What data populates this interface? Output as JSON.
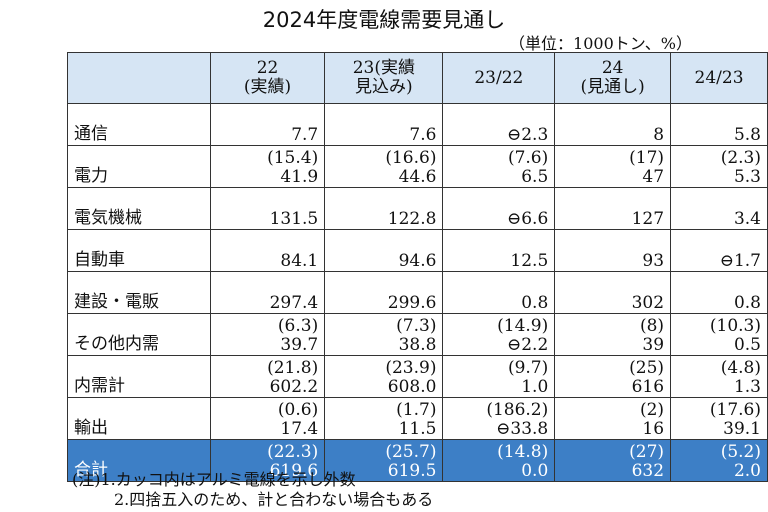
{
  "header": {
    "title": "2024年度電線需要見通し",
    "unit": "（単位：1000トン、%）"
  },
  "table": {
    "columns": [
      "22\n(実績)",
      "23(実績\n見込み)",
      "23/22",
      "24\n(見通し)",
      "24/23"
    ],
    "rows": [
      {
        "label": "通信",
        "values": [
          "7.7",
          "7.6",
          "⊖2.3",
          "8",
          "5.8"
        ]
      },
      {
        "label": "電力",
        "paren": [
          "(15.4)",
          "(16.6)",
          "(7.6)",
          "(17)",
          "(2.3)"
        ],
        "values": [
          "41.9",
          "44.6",
          "6.5",
          "47",
          "5.3"
        ]
      },
      {
        "label": "電気機械",
        "values": [
          "131.5",
          "122.8",
          "⊖6.6",
          "127",
          "3.4"
        ]
      },
      {
        "label": "自動車",
        "values": [
          "84.1",
          "94.6",
          "12.5",
          "93",
          "⊖1.7"
        ]
      },
      {
        "label": "建設・電販",
        "values": [
          "297.4",
          "299.6",
          "0.8",
          "302",
          "0.8"
        ]
      },
      {
        "label": "その他内需",
        "paren": [
          "(6.3)",
          "(7.3)",
          "(14.9)",
          "(8)",
          "(10.3)"
        ],
        "values": [
          "39.7",
          "38.8",
          "⊖2.2",
          "39",
          "0.5"
        ]
      },
      {
        "label": "内需計",
        "paren": [
          "(21.8)",
          "(23.9)",
          "(9.7)",
          "(25)",
          "(4.8)"
        ],
        "values": [
          "602.2",
          "608.0",
          "1.0",
          "616",
          "1.3"
        ]
      },
      {
        "label": "輸出",
        "paren": [
          "(0.6)",
          "(1.7)",
          "(186.2)",
          "(2)",
          "(17.6)"
        ],
        "values": [
          "17.4",
          "11.5",
          "⊖33.8",
          "16",
          "39.1"
        ]
      },
      {
        "label": "合計",
        "paren": [
          "(22.3)",
          "(25.7)",
          "(14.8)",
          "(27)",
          "(5.2)"
        ],
        "values": [
          "619.6",
          "619.5",
          "0.0",
          "632",
          "2.0"
        ]
      }
    ]
  },
  "notes": [
    "(注)1.カッコ内はアルミ電線を示し外数",
    "2.四捨五入のため、計と合わない場合もある"
  ]
}
